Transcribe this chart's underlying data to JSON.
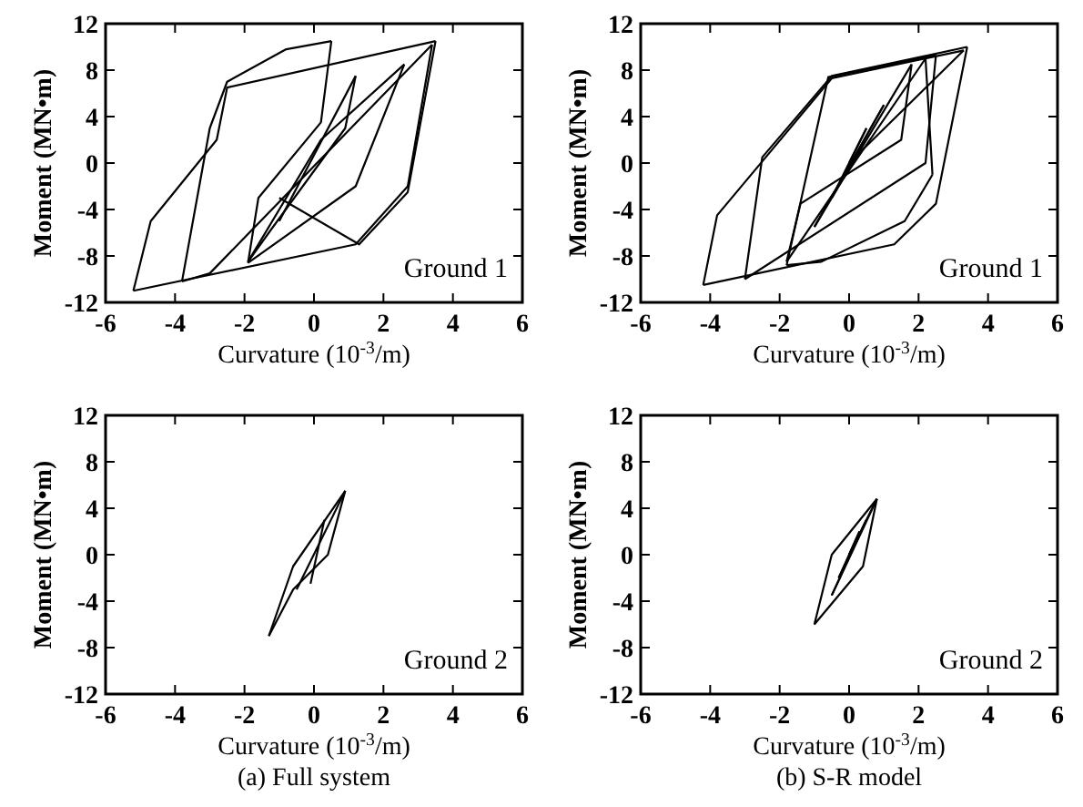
{
  "chart_data": [
    {
      "type": "line",
      "xlabel": "Curvature (10$^{-3}$/m)",
      "ylabel": "Moment (MN•m)",
      "xlim": [
        -6,
        6
      ],
      "ylim": [
        -12,
        12
      ],
      "xticks": [
        -6,
        -4,
        -2,
        0,
        2,
        4,
        6
      ],
      "yticks": [
        -12,
        -8,
        -4,
        0,
        4,
        8,
        12
      ],
      "annotations": [
        "Ground 1"
      ],
      "series": [
        {
          "color": "#000000",
          "x": [
            -1,
            1.2
          ],
          "values": [
            -5,
            7.5
          ]
        },
        {
          "color": "#000000",
          "x": [
            1.2,
            0.9,
            -1.3,
            -1.9
          ],
          "values": [
            7.5,
            3,
            -6,
            -8.5
          ]
        },
        {
          "color": "#000000",
          "x": [
            -1.9,
            0.2,
            2.6
          ],
          "values": [
            -8.5,
            2,
            8.5
          ]
        },
        {
          "color": "#000000",
          "x": [
            2.6,
            1.2,
            -1.9
          ],
          "values": [
            8.5,
            -2,
            -8.6
          ]
        },
        {
          "color": "#000000",
          "x": [
            -1.9,
            -1.6,
            0.2,
            0.5
          ],
          "values": [
            -8.6,
            -3,
            3.5,
            10.5
          ]
        },
        {
          "color": "#000000",
          "x": [
            0.5,
            -0.8,
            -2.5,
            -3,
            -3.8
          ],
          "values": [
            10.5,
            9.8,
            7,
            3,
            -10.2
          ]
        },
        {
          "color": "#000000",
          "x": [
            -3.8,
            -3,
            3.4
          ],
          "values": [
            -10.2,
            -9.5,
            10.2
          ]
        },
        {
          "color": "#000000",
          "x": [
            3.4,
            2.7,
            1.2,
            -5.2
          ],
          "values": [
            10.2,
            -2,
            -7,
            -11
          ]
        },
        {
          "color": "#000000",
          "x": [
            -5.2,
            -4.7,
            -2.8,
            -2.5,
            3.5
          ],
          "values": [
            -11,
            -5,
            2,
            6.5,
            10.5
          ]
        },
        {
          "color": "#000000",
          "x": [
            3.5,
            2.7,
            1.3,
            -1
          ],
          "values": [
            10.5,
            -2.5,
            -7,
            -3
          ]
        }
      ]
    },
    {
      "type": "line",
      "xlabel": "Curvature (10$^{-3}$/m)",
      "ylabel": "Moment (MN•m)",
      "xlim": [
        -6,
        6
      ],
      "ylim": [
        -12,
        12
      ],
      "xticks": [
        -6,
        -4,
        -2,
        0,
        2,
        4,
        6
      ],
      "yticks": [
        -12,
        -8,
        -4,
        0,
        4,
        8,
        12
      ],
      "annotations": [
        "Ground 1"
      ],
      "series": [
        {
          "color": "#000000",
          "x": [
            0,
            0.5
          ],
          "values": [
            0,
            3
          ]
        },
        {
          "color": "#000000",
          "x": [
            0.5,
            -0.5
          ],
          "values": [
            3,
            -3
          ]
        },
        {
          "color": "#000000",
          "x": [
            -0.5,
            1
          ],
          "values": [
            -3,
            5
          ]
        },
        {
          "color": "#000000",
          "x": [
            1,
            -1
          ],
          "values": [
            5,
            -5.5
          ]
        },
        {
          "color": "#000000",
          "x": [
            -1,
            1.8
          ],
          "values": [
            -5.5,
            8.5
          ]
        },
        {
          "color": "#000000",
          "x": [
            1.8,
            1.5,
            -1.4,
            -1.8
          ],
          "values": [
            8.5,
            2,
            -3.5,
            -8.5
          ]
        },
        {
          "color": "#000000",
          "x": [
            -1.8,
            2.2,
            2.4
          ],
          "values": [
            -8.5,
            9,
            -1
          ]
        },
        {
          "color": "#000000",
          "x": [
            2.4,
            1.6,
            -0.8,
            -1.8
          ],
          "values": [
            -1,
            -5,
            -8.5,
            -8.8
          ]
        },
        {
          "color": "#000000",
          "x": [
            -1.8,
            -0.6,
            2.5
          ],
          "values": [
            -8.8,
            7.4,
            9.3
          ]
        },
        {
          "color": "#000000",
          "x": [
            2.5,
            2.2,
            -3
          ],
          "values": [
            9.3,
            0,
            -10
          ]
        },
        {
          "color": "#000000",
          "x": [
            -3,
            -2.5,
            -0.5,
            3.4
          ],
          "values": [
            -10,
            0.5,
            7.5,
            10
          ]
        },
        {
          "color": "#000000",
          "x": [
            3.4,
            2.5,
            1.3,
            -4.2
          ],
          "values": [
            10,
            -3.5,
            -7,
            -10.5
          ]
        },
        {
          "color": "#000000",
          "x": [
            -4.2,
            -3.8,
            -2.4,
            -0.5,
            3.3
          ],
          "values": [
            -10.5,
            -4.5,
            0.5,
            7.3,
            9.7
          ]
        },
        {
          "color": "#000000",
          "x": [
            3.3,
            0
          ],
          "values": [
            9.7,
            0
          ]
        }
      ]
    },
    {
      "type": "line",
      "xlabel": "Curvature (10$^{-3}$/m)",
      "ylabel": "Moment (MN•m)",
      "xlim": [
        -6,
        6
      ],
      "ylim": [
        -12,
        12
      ],
      "xticks": [
        -6,
        -4,
        -2,
        0,
        2,
        4,
        6
      ],
      "yticks": [
        -12,
        -8,
        -4,
        0,
        4,
        8,
        12
      ],
      "annotations": [
        "Ground 2",
        "(a) Full system"
      ],
      "series": [
        {
          "color": "#000000",
          "x": [
            -0.5,
            0.9
          ],
          "values": [
            -3,
            5.5
          ]
        },
        {
          "color": "#000000",
          "x": [
            0.9,
            0.4,
            -0.6,
            -1.3
          ],
          "values": [
            5.5,
            0,
            -3,
            -7
          ]
        },
        {
          "color": "#000000",
          "x": [
            -1.3,
            -0.6,
            0.9
          ],
          "values": [
            -7,
            -1,
            5.5
          ]
        },
        {
          "color": "#000000",
          "x": [
            -0.1,
            0.3
          ],
          "values": [
            -2.5,
            3
          ]
        }
      ]
    },
    {
      "type": "line",
      "xlabel": "Curvature (10$^{-3}$/m)",
      "ylabel": "Moment (MN•m)",
      "xlim": [
        -6,
        6
      ],
      "ylim": [
        -12,
        12
      ],
      "xticks": [
        -6,
        -4,
        -2,
        0,
        2,
        4,
        6
      ],
      "yticks": [
        -12,
        -8,
        -4,
        0,
        4,
        8,
        12
      ],
      "annotations": [
        "Ground 2",
        "(b) S-R model"
      ],
      "series": [
        {
          "color": "#000000",
          "x": [
            0,
            0.3
          ],
          "values": [
            0,
            2
          ]
        },
        {
          "color": "#000000",
          "x": [
            0.3,
            -0.3
          ],
          "values": [
            2,
            -2
          ]
        },
        {
          "color": "#000000",
          "x": [
            -0.3,
            0.5
          ],
          "values": [
            -2,
            3
          ]
        },
        {
          "color": "#000000",
          "x": [
            0.5,
            -0.5
          ],
          "values": [
            3,
            -3.5
          ]
        },
        {
          "color": "#000000",
          "x": [
            -0.5,
            0.8
          ],
          "values": [
            -3.5,
            4.8
          ]
        },
        {
          "color": "#000000",
          "x": [
            0.8,
            0.4,
            -1
          ],
          "values": [
            4.8,
            -1,
            -6
          ]
        },
        {
          "color": "#000000",
          "x": [
            -1,
            -0.5,
            0.8
          ],
          "values": [
            -6,
            0,
            4.8
          ]
        },
        {
          "color": "#000000",
          "x": [
            0.8,
            0
          ],
          "values": [
            4.8,
            0
          ]
        }
      ]
    }
  ]
}
